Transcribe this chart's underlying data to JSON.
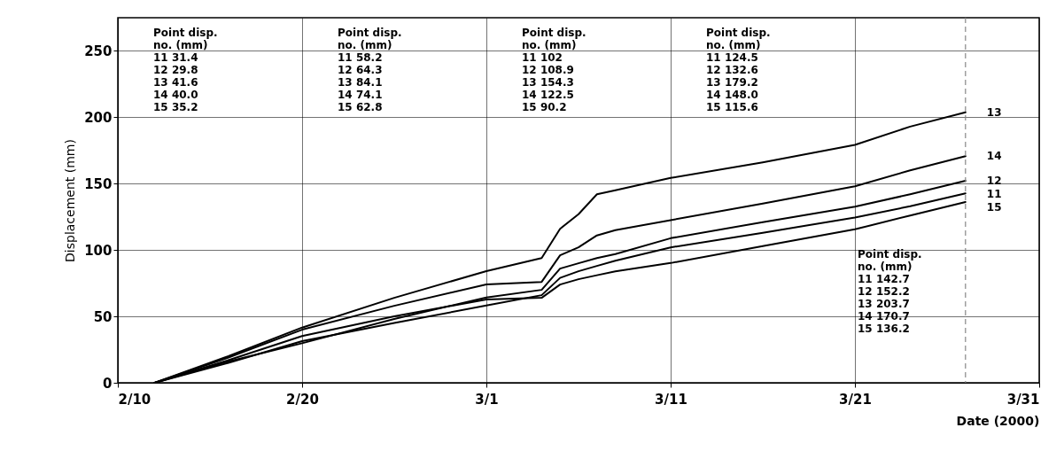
{
  "chart_data": {
    "type": "line",
    "xlabel": "Date (2000)",
    "ylabel": "Displacement (mm)",
    "x": [
      "2000-02-12",
      "2000-02-16",
      "2000-02-20",
      "2000-02-25",
      "2000-03-01",
      "2000-03-04",
      "2000-03-05",
      "2000-03-06",
      "2000-03-07",
      "2000-03-08",
      "2000-03-11",
      "2000-03-16",
      "2000-03-21",
      "2000-03-24",
      "2000-03-27"
    ],
    "series": [
      {
        "name": "11",
        "color": "#000000",
        "values": [
          0,
          15,
          31.4,
          45,
          58.2,
          66,
          79,
          84,
          88,
          92,
          102,
          113,
          124.5,
          133,
          142.7
        ]
      },
      {
        "name": "12",
        "color": "#000000",
        "values": [
          0,
          16,
          29.8,
          48,
          64.3,
          70,
          86,
          90,
          94,
          97,
          108.9,
          121,
          132.6,
          142,
          152.2
        ]
      },
      {
        "name": "13",
        "color": "#000000",
        "values": [
          0,
          20,
          41.6,
          64,
          84.1,
          94,
          116,
          127,
          142,
          145,
          154.3,
          166,
          179.2,
          193,
          203.7
        ]
      },
      {
        "name": "14",
        "color": "#000000",
        "values": [
          0,
          19,
          40.0,
          58,
          74.1,
          76,
          96,
          102,
          111,
          115,
          122.5,
          135,
          148.0,
          160,
          170.7
        ]
      },
      {
        "name": "15",
        "color": "#000000",
        "values": [
          0,
          17,
          35.2,
          50,
          62.8,
          64,
          74,
          78,
          81,
          84,
          90.2,
          103,
          115.6,
          126,
          136.2
        ]
      }
    ],
    "xlim": [
      "2000-02-10",
      "2000-03-31"
    ],
    "xticks": [
      {
        "value": "2000-02-10",
        "label": "2/10"
      },
      {
        "value": "2000-02-20",
        "label": "2/20"
      },
      {
        "value": "2000-03-01",
        "label": "3/1"
      },
      {
        "value": "2000-03-11",
        "label": "3/11"
      },
      {
        "value": "2000-03-21",
        "label": "3/21"
      },
      {
        "value": "2000-03-31",
        "label": "3/31"
      }
    ],
    "ylim": [
      0,
      275
    ],
    "yticks": [
      0,
      50,
      100,
      150,
      200,
      250
    ],
    "grid": true,
    "marker": "none",
    "line_style": "solid",
    "ref_lines": [
      {
        "axis": "x",
        "value": "2000-03-27",
        "label": null,
        "line_style": "dashed",
        "color": "#888888"
      }
    ],
    "annotations": [
      "Point disp.\nno. (mm)\n11 31.4\n12 29.8\n13 41.6\n14 40.0\n15 35.2",
      "Point disp.\nno. (mm)\n11 58.2\n12 64.3\n13 84.1\n14 74.1\n15 62.8",
      "Point disp.\nno. (mm)\n11 102\n12 108.9\n13 154.3\n14 122.5\n15 90.2",
      "Point disp.\nno. (mm)\n11 124.5\n12 132.6\n13 179.2\n14 148.0\n15 115.6",
      "Point disp.\nno. (mm)\n11 142.7\n12 152.2\n13 203.7\n14 170.7\n15 136.2"
    ]
  }
}
